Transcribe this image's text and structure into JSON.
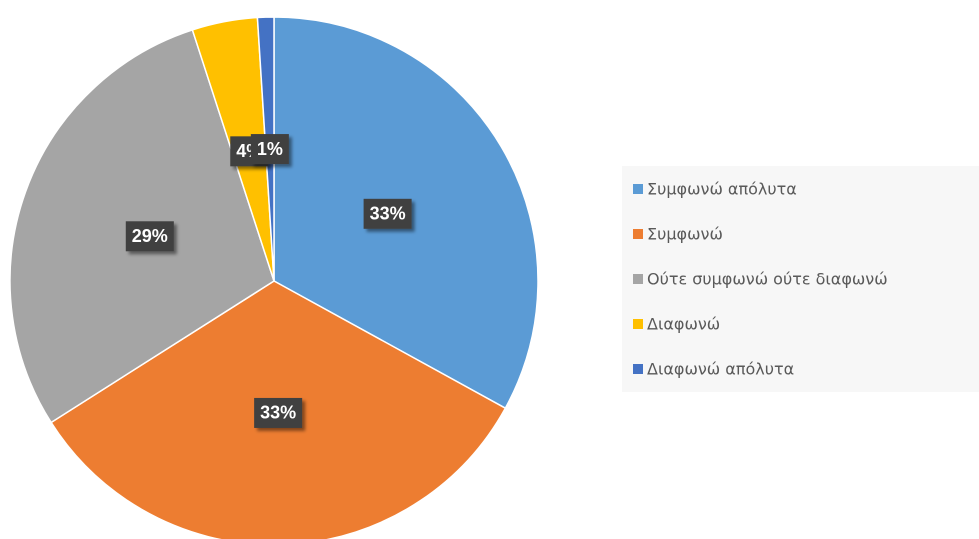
{
  "chart_data": {
    "type": "pie",
    "categories": [
      "Συμφωνώ απόλυτα",
      "Συμφωνώ",
      "Ούτε συμφωνώ ούτε διαφωνώ",
      "Διαφωνώ",
      "Διαφωνώ απόλυτα"
    ],
    "values": [
      33,
      33,
      29,
      4,
      1
    ],
    "value_labels": [
      "33%",
      "33%",
      "29%",
      "4%",
      "1%"
    ],
    "colors": [
      "#5b9bd5",
      "#ed7d31",
      "#a5a5a5",
      "#ffc000",
      "#4472c4"
    ],
    "legend": "right"
  }
}
